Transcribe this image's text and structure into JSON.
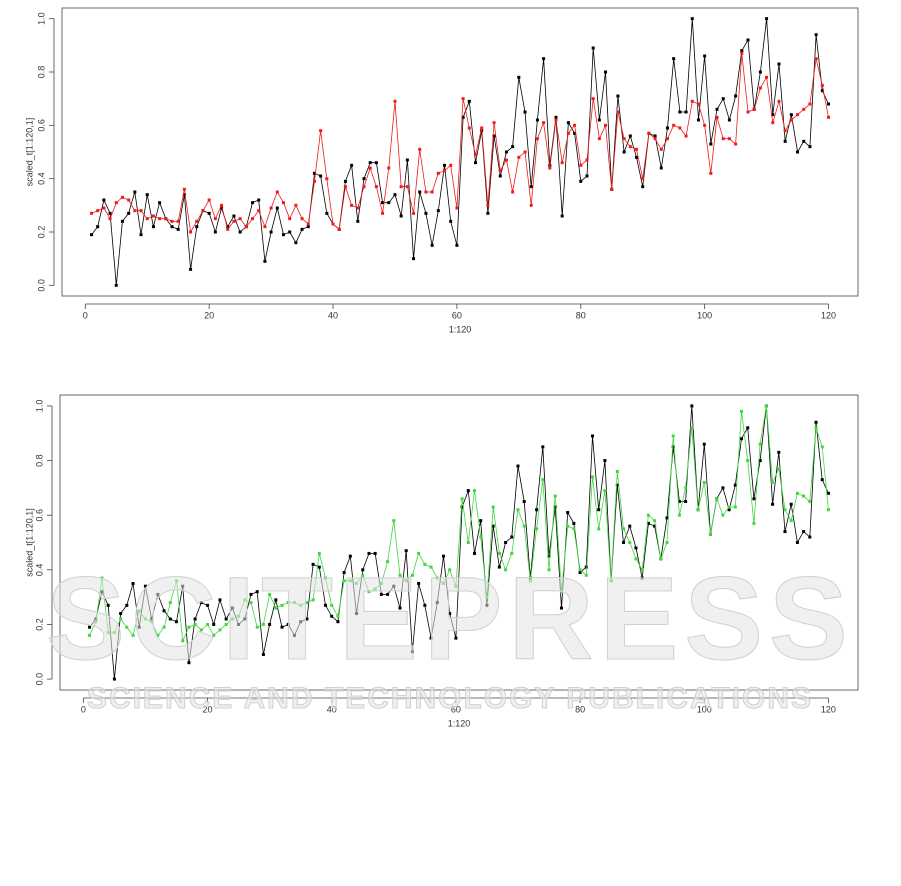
{
  "chart_data": [
    {
      "type": "line",
      "x_label": "1:120",
      "y_label": "scaled_t[1:120,1]",
      "x": [
        1,
        2,
        3,
        4,
        5,
        6,
        7,
        8,
        9,
        10,
        11,
        12,
        13,
        14,
        15,
        16,
        17,
        18,
        19,
        20,
        21,
        22,
        23,
        24,
        25,
        26,
        27,
        28,
        29,
        30,
        31,
        32,
        33,
        34,
        35,
        36,
        37,
        38,
        39,
        40,
        41,
        42,
        43,
        44,
        45,
        46,
        47,
        48,
        49,
        50,
        51,
        52,
        53,
        54,
        55,
        56,
        57,
        58,
        59,
        60,
        61,
        62,
        63,
        64,
        65,
        66,
        67,
        68,
        69,
        70,
        71,
        72,
        73,
        74,
        75,
        76,
        77,
        78,
        79,
        80,
        81,
        82,
        83,
        84,
        85,
        86,
        87,
        88,
        89,
        90,
        91,
        92,
        93,
        94,
        95,
        96,
        97,
        98,
        99,
        100,
        101,
        102,
        103,
        104,
        105,
        106,
        107,
        108,
        109,
        110,
        111,
        112,
        113,
        114,
        115,
        116,
        117,
        118,
        119,
        120
      ],
      "series": [
        {
          "color": "#000000",
          "values": [
            0.19,
            0.22,
            0.32,
            0.27,
            0.0,
            0.24,
            0.27,
            0.35,
            0.19,
            0.34,
            0.22,
            0.31,
            0.25,
            0.22,
            0.21,
            0.34,
            0.06,
            0.22,
            0.28,
            0.27,
            0.2,
            0.29,
            0.22,
            0.26,
            0.2,
            0.22,
            0.31,
            0.32,
            0.09,
            0.2,
            0.29,
            0.19,
            0.2,
            0.16,
            0.21,
            0.22,
            0.42,
            0.41,
            0.27,
            0.23,
            0.21,
            0.39,
            0.45,
            0.24,
            0.4,
            0.46,
            0.46,
            0.31,
            0.31,
            0.34,
            0.26,
            0.47,
            0.1,
            0.35,
            0.27,
            0.15,
            0.28,
            0.45,
            0.24,
            0.15,
            0.63,
            0.69,
            0.46,
            0.58,
            0.27,
            0.56,
            0.41,
            0.5,
            0.52,
            0.78,
            0.65,
            0.37,
            0.62,
            0.85,
            0.45,
            0.63,
            0.26,
            0.61,
            0.57,
            0.39,
            0.41,
            0.89,
            0.62,
            0.8,
            0.36,
            0.71,
            0.5,
            0.56,
            0.48,
            0.37,
            0.57,
            0.56,
            0.44,
            0.59,
            0.85,
            0.65,
            0.65,
            1.0,
            0.62,
            0.86,
            0.53,
            0.66,
            0.7,
            0.62,
            0.71,
            0.88,
            0.92,
            0.66,
            0.8,
            1.0,
            0.64,
            0.83,
            0.54,
            0.64,
            0.5,
            0.54,
            0.52,
            0.94,
            0.73,
            0.68
          ]
        },
        {
          "color": "#ee1c1c",
          "values": [
            0.27,
            0.28,
            0.29,
            0.25,
            0.31,
            0.33,
            0.32,
            0.28,
            0.28,
            0.25,
            0.26,
            0.25,
            0.25,
            0.24,
            0.24,
            0.36,
            0.2,
            0.24,
            0.28,
            0.32,
            0.25,
            0.3,
            0.21,
            0.24,
            0.25,
            0.22,
            0.25,
            0.28,
            0.22,
            0.29,
            0.35,
            0.31,
            0.25,
            0.3,
            0.25,
            0.23,
            0.39,
            0.58,
            0.4,
            0.23,
            0.21,
            0.37,
            0.3,
            0.29,
            0.37,
            0.44,
            0.37,
            0.27,
            0.44,
            0.69,
            0.37,
            0.37,
            0.27,
            0.51,
            0.35,
            0.35,
            0.42,
            0.43,
            0.45,
            0.29,
            0.7,
            0.59,
            0.49,
            0.59,
            0.3,
            0.61,
            0.43,
            0.47,
            0.35,
            0.48,
            0.5,
            0.3,
            0.55,
            0.61,
            0.44,
            0.62,
            0.46,
            0.57,
            0.6,
            0.45,
            0.47,
            0.7,
            0.55,
            0.6,
            0.36,
            0.65,
            0.55,
            0.52,
            0.51,
            0.4,
            0.57,
            0.55,
            0.51,
            0.55,
            0.6,
            0.59,
            0.56,
            0.69,
            0.68,
            0.6,
            0.42,
            0.63,
            0.55,
            0.55,
            0.53,
            0.87,
            0.65,
            0.66,
            0.74,
            0.78,
            0.61,
            0.69,
            0.58,
            0.62,
            0.64,
            0.66,
            0.68,
            0.85,
            0.75,
            0.63
          ]
        }
      ],
      "xlim": [
        -3.76,
        124.76
      ],
      "xticks": [
        0,
        20,
        40,
        60,
        80,
        100,
        120
      ],
      "ylim": [
        -0.04,
        1.04
      ],
      "yticks": [
        {
          "value": 0,
          "label": "0.0"
        },
        0.2,
        0.4,
        0.6,
        0.8,
        {
          "value": 1,
          "label": "1.0"
        }
      ]
    },
    {
      "type": "line",
      "x_label": "1:120",
      "y_label": "scaled_t[1:120,1]",
      "x": [
        1,
        2,
        3,
        4,
        5,
        6,
        7,
        8,
        9,
        10,
        11,
        12,
        13,
        14,
        15,
        16,
        17,
        18,
        19,
        20,
        21,
        22,
        23,
        24,
        25,
        26,
        27,
        28,
        29,
        30,
        31,
        32,
        33,
        34,
        35,
        36,
        37,
        38,
        39,
        40,
        41,
        42,
        43,
        44,
        45,
        46,
        47,
        48,
        49,
        50,
        51,
        52,
        53,
        54,
        55,
        56,
        57,
        58,
        59,
        60,
        61,
        62,
        63,
        64,
        65,
        66,
        67,
        68,
        69,
        70,
        71,
        72,
        73,
        74,
        75,
        76,
        77,
        78,
        79,
        80,
        81,
        82,
        83,
        84,
        85,
        86,
        87,
        88,
        89,
        90,
        91,
        92,
        93,
        94,
        95,
        96,
        97,
        98,
        99,
        100,
        101,
        102,
        103,
        104,
        105,
        106,
        107,
        108,
        109,
        110,
        111,
        112,
        113,
        114,
        115,
        116,
        117,
        118,
        119,
        120
      ],
      "series": [
        {
          "color": "#000000",
          "values": [
            0.19,
            0.22,
            0.32,
            0.27,
            0.0,
            0.24,
            0.27,
            0.35,
            0.19,
            0.34,
            0.22,
            0.31,
            0.25,
            0.22,
            0.21,
            0.34,
            0.06,
            0.22,
            0.28,
            0.27,
            0.2,
            0.29,
            0.22,
            0.26,
            0.2,
            0.22,
            0.31,
            0.32,
            0.09,
            0.2,
            0.29,
            0.19,
            0.2,
            0.16,
            0.21,
            0.22,
            0.42,
            0.41,
            0.27,
            0.23,
            0.21,
            0.39,
            0.45,
            0.24,
            0.4,
            0.46,
            0.46,
            0.31,
            0.31,
            0.34,
            0.26,
            0.47,
            0.1,
            0.35,
            0.27,
            0.15,
            0.28,
            0.45,
            0.24,
            0.15,
            0.63,
            0.69,
            0.46,
            0.58,
            0.27,
            0.56,
            0.41,
            0.5,
            0.52,
            0.78,
            0.65,
            0.37,
            0.62,
            0.85,
            0.45,
            0.63,
            0.26,
            0.61,
            0.57,
            0.39,
            0.41,
            0.89,
            0.62,
            0.8,
            0.36,
            0.71,
            0.5,
            0.56,
            0.48,
            0.37,
            0.57,
            0.56,
            0.44,
            0.59,
            0.85,
            0.65,
            0.65,
            1.0,
            0.62,
            0.86,
            0.53,
            0.66,
            0.7,
            0.62,
            0.71,
            0.88,
            0.92,
            0.66,
            0.8,
            1.0,
            0.64,
            0.83,
            0.54,
            0.64,
            0.5,
            0.54,
            0.52,
            0.94,
            0.73,
            0.68
          ]
        },
        {
          "color": "#3fd83f",
          "values": [
            0.16,
            0.21,
            0.37,
            0.17,
            0.17,
            0.22,
            0.19,
            0.16,
            0.25,
            0.22,
            0.21,
            0.16,
            0.19,
            0.28,
            0.36,
            0.14,
            0.19,
            0.2,
            0.18,
            0.2,
            0.16,
            0.18,
            0.2,
            0.22,
            0.23,
            0.29,
            0.28,
            0.19,
            0.2,
            0.31,
            0.26,
            0.27,
            0.28,
            0.28,
            0.27,
            0.28,
            0.29,
            0.46,
            0.37,
            0.27,
            0.23,
            0.36,
            0.36,
            0.35,
            0.38,
            0.32,
            0.33,
            0.35,
            0.43,
            0.58,
            0.38,
            0.36,
            0.38,
            0.46,
            0.42,
            0.41,
            0.37,
            0.35,
            0.4,
            0.34,
            0.66,
            0.5,
            0.69,
            0.52,
            0.3,
            0.63,
            0.46,
            0.4,
            0.46,
            0.62,
            0.56,
            0.36,
            0.55,
            0.73,
            0.4,
            0.67,
            0.32,
            0.56,
            0.55,
            0.4,
            0.38,
            0.74,
            0.55,
            0.69,
            0.36,
            0.76,
            0.55,
            0.5,
            0.44,
            0.4,
            0.6,
            0.58,
            0.44,
            0.5,
            0.89,
            0.6,
            0.7,
            0.92,
            0.62,
            0.72,
            0.53,
            0.66,
            0.6,
            0.63,
            0.63,
            0.98,
            0.8,
            0.57,
            0.86,
            1.0,
            0.72,
            0.77,
            0.62,
            0.58,
            0.68,
            0.67,
            0.65,
            0.92,
            0.85,
            0.62
          ]
        }
      ],
      "xlim": [
        -3.76,
        124.76
      ],
      "xticks": [
        0,
        20,
        40,
        60,
        80,
        100,
        120
      ],
      "ylim": [
        -0.04,
        1.04
      ],
      "yticks": [
        {
          "value": 0,
          "label": "0.0"
        },
        0.2,
        0.4,
        0.6,
        0.8,
        {
          "value": 1,
          "label": "1.0"
        }
      ]
    }
  ],
  "watermark": {
    "title": "SCITEPRESS",
    "subtitle": "SCIENCE AND TECHNOLOGY PUBLICATIONS"
  }
}
